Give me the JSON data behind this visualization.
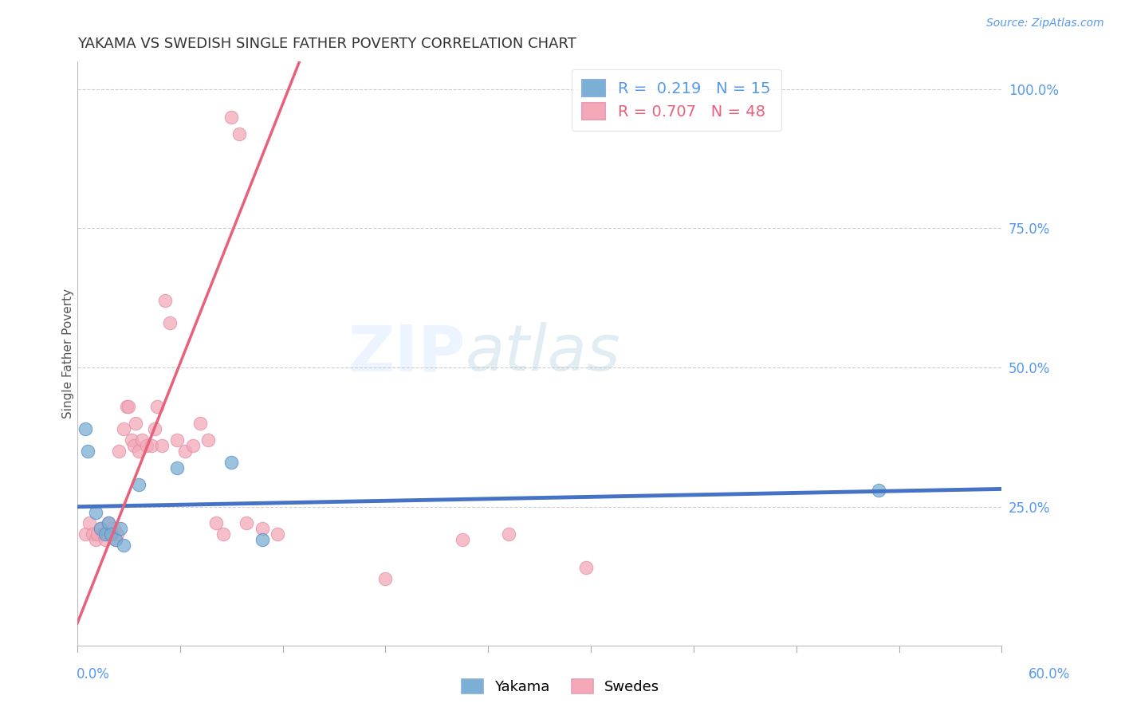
{
  "title": "YAKAMA VS SWEDISH SINGLE FATHER POVERTY CORRELATION CHART",
  "source_text": "Source: ZipAtlas.com",
  "watermark_zip": "ZIP",
  "watermark_atlas": "atlas",
  "yakama_R": 0.219,
  "yakama_N": 15,
  "swedes_R": 0.707,
  "swedes_N": 48,
  "yakama_color": "#7BAFD4",
  "swedes_color": "#F4A8B8",
  "yakama_line_color": "#4472C4",
  "swedes_line_color": "#E8607A",
  "grid_color": "#C8C8C8",
  "background_color": "#FFFFFF",
  "title_fontsize": 13,
  "xlim": [
    0.0,
    0.6
  ],
  "ylim": [
    0.0,
    1.05
  ],
  "yticks": [
    0.25,
    0.5,
    0.75,
    1.0
  ],
  "ytick_labels": [
    "25.0%",
    "50.0%",
    "75.0%",
    "100.0%"
  ],
  "yakama_points": [
    [
      0.005,
      0.39
    ],
    [
      0.007,
      0.35
    ],
    [
      0.012,
      0.24
    ],
    [
      0.015,
      0.21
    ],
    [
      0.018,
      0.2
    ],
    [
      0.02,
      0.22
    ],
    [
      0.022,
      0.2
    ],
    [
      0.025,
      0.19
    ],
    [
      0.028,
      0.21
    ],
    [
      0.03,
      0.18
    ],
    [
      0.04,
      0.29
    ],
    [
      0.065,
      0.32
    ],
    [
      0.1,
      0.33
    ],
    [
      0.12,
      0.19
    ],
    [
      0.52,
      0.28
    ]
  ],
  "swedes_points": [
    [
      0.005,
      0.2
    ],
    [
      0.008,
      0.22
    ],
    [
      0.01,
      0.2
    ],
    [
      0.012,
      0.19
    ],
    [
      0.013,
      0.2
    ],
    [
      0.015,
      0.21
    ],
    [
      0.017,
      0.2
    ],
    [
      0.018,
      0.19
    ],
    [
      0.019,
      0.2
    ],
    [
      0.02,
      0.22
    ],
    [
      0.021,
      0.2
    ],
    [
      0.022,
      0.2
    ],
    [
      0.023,
      0.2
    ],
    [
      0.024,
      0.21
    ],
    [
      0.025,
      0.19
    ],
    [
      0.026,
      0.2
    ],
    [
      0.027,
      0.35
    ],
    [
      0.03,
      0.39
    ],
    [
      0.032,
      0.43
    ],
    [
      0.033,
      0.43
    ],
    [
      0.035,
      0.37
    ],
    [
      0.037,
      0.36
    ],
    [
      0.038,
      0.4
    ],
    [
      0.04,
      0.35
    ],
    [
      0.042,
      0.37
    ],
    [
      0.045,
      0.36
    ],
    [
      0.048,
      0.36
    ],
    [
      0.05,
      0.39
    ],
    [
      0.052,
      0.43
    ],
    [
      0.055,
      0.36
    ],
    [
      0.057,
      0.62
    ],
    [
      0.06,
      0.58
    ],
    [
      0.065,
      0.37
    ],
    [
      0.07,
      0.35
    ],
    [
      0.075,
      0.36
    ],
    [
      0.08,
      0.4
    ],
    [
      0.085,
      0.37
    ],
    [
      0.09,
      0.22
    ],
    [
      0.095,
      0.2
    ],
    [
      0.1,
      0.95
    ],
    [
      0.105,
      0.92
    ],
    [
      0.11,
      0.22
    ],
    [
      0.12,
      0.21
    ],
    [
      0.13,
      0.2
    ],
    [
      0.2,
      0.12
    ],
    [
      0.25,
      0.19
    ],
    [
      0.28,
      0.2
    ],
    [
      0.33,
      0.14
    ]
  ],
  "yakama_trend": [
    0.0,
    0.6,
    0.195,
    0.285
  ],
  "swedes_trend_solid": [
    0.0,
    0.145,
    0.05,
    1.0
  ],
  "swedes_trend_dashed": [
    0.145,
    0.6,
    1.0,
    1.02
  ]
}
